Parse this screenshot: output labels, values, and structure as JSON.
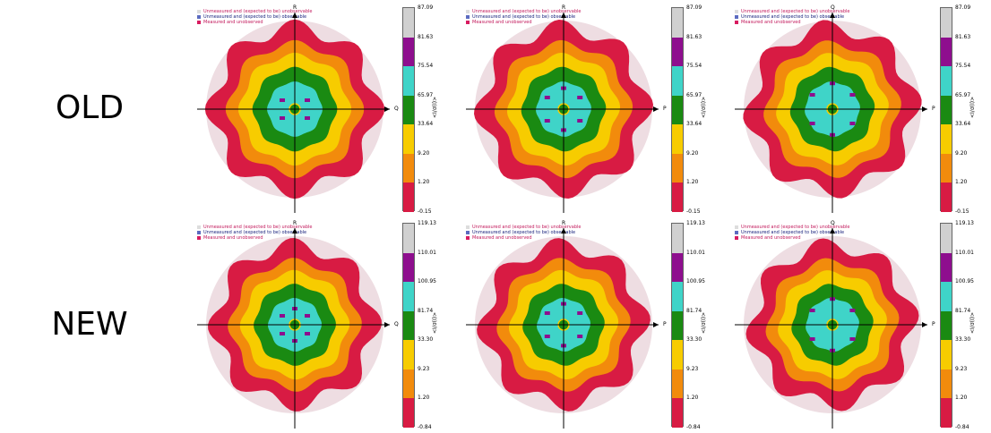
{
  "row_labels": [
    "OLD",
    "NEW"
  ],
  "legend": [
    {
      "label": "Unmeasured and (expected to be) unobservable",
      "color": "#c2185b",
      "swatch": "#dddddd"
    },
    {
      "label": "Unmeasured and (expected to be) observable",
      "color": "#1a237e",
      "swatch": "#5c6bc0"
    },
    {
      "label": "Measured and unobserved",
      "color": "#c2185b",
      "swatch": "#d81b60"
    }
  ],
  "colorbar_title": "<I/σ(I)>",
  "colors": [
    "#d81b43",
    "#f28b0c",
    "#f7cc00",
    "#1a8a12",
    "#3fd4c8",
    "#8e0e8e",
    "#d0d0d0"
  ],
  "panels": [
    {
      "id": "old-1",
      "axis_up": "R",
      "axis_right": "Q",
      "ticks": [
        "87.09",
        "81.63",
        "75.54",
        "65.97",
        "33.64",
        "9.20",
        "1.20",
        "-0.15"
      ]
    },
    {
      "id": "old-2",
      "axis_up": "R",
      "axis_right": "P",
      "ticks": [
        "87.09",
        "81.63",
        "75.54",
        "65.97",
        "33.64",
        "9.20",
        "1.20",
        "-0.15"
      ]
    },
    {
      "id": "old-3",
      "axis_up": "Q",
      "axis_right": "P",
      "ticks": [
        "87.09",
        "81.63",
        "75.54",
        "65.97",
        "33.64",
        "9.20",
        "1.20",
        "-0.15"
      ]
    },
    {
      "id": "new-1",
      "axis_up": "R",
      "axis_right": "Q",
      "ticks": [
        "119.13",
        "110.01",
        "100.95",
        "81.74",
        "33.30",
        "9.23",
        "1.20",
        "-0.84"
      ]
    },
    {
      "id": "new-2",
      "axis_up": "R",
      "axis_right": "P",
      "ticks": [
        "119.13",
        "110.01",
        "100.95",
        "81.74",
        "33.30",
        "9.23",
        "1.20",
        "-0.84"
      ]
    },
    {
      "id": "new-3",
      "axis_up": "Q",
      "axis_right": "P",
      "ticks": [
        "119.13",
        "110.01",
        "100.95",
        "81.74",
        "33.30",
        "9.23",
        "1.20",
        "-0.84"
      ]
    }
  ]
}
